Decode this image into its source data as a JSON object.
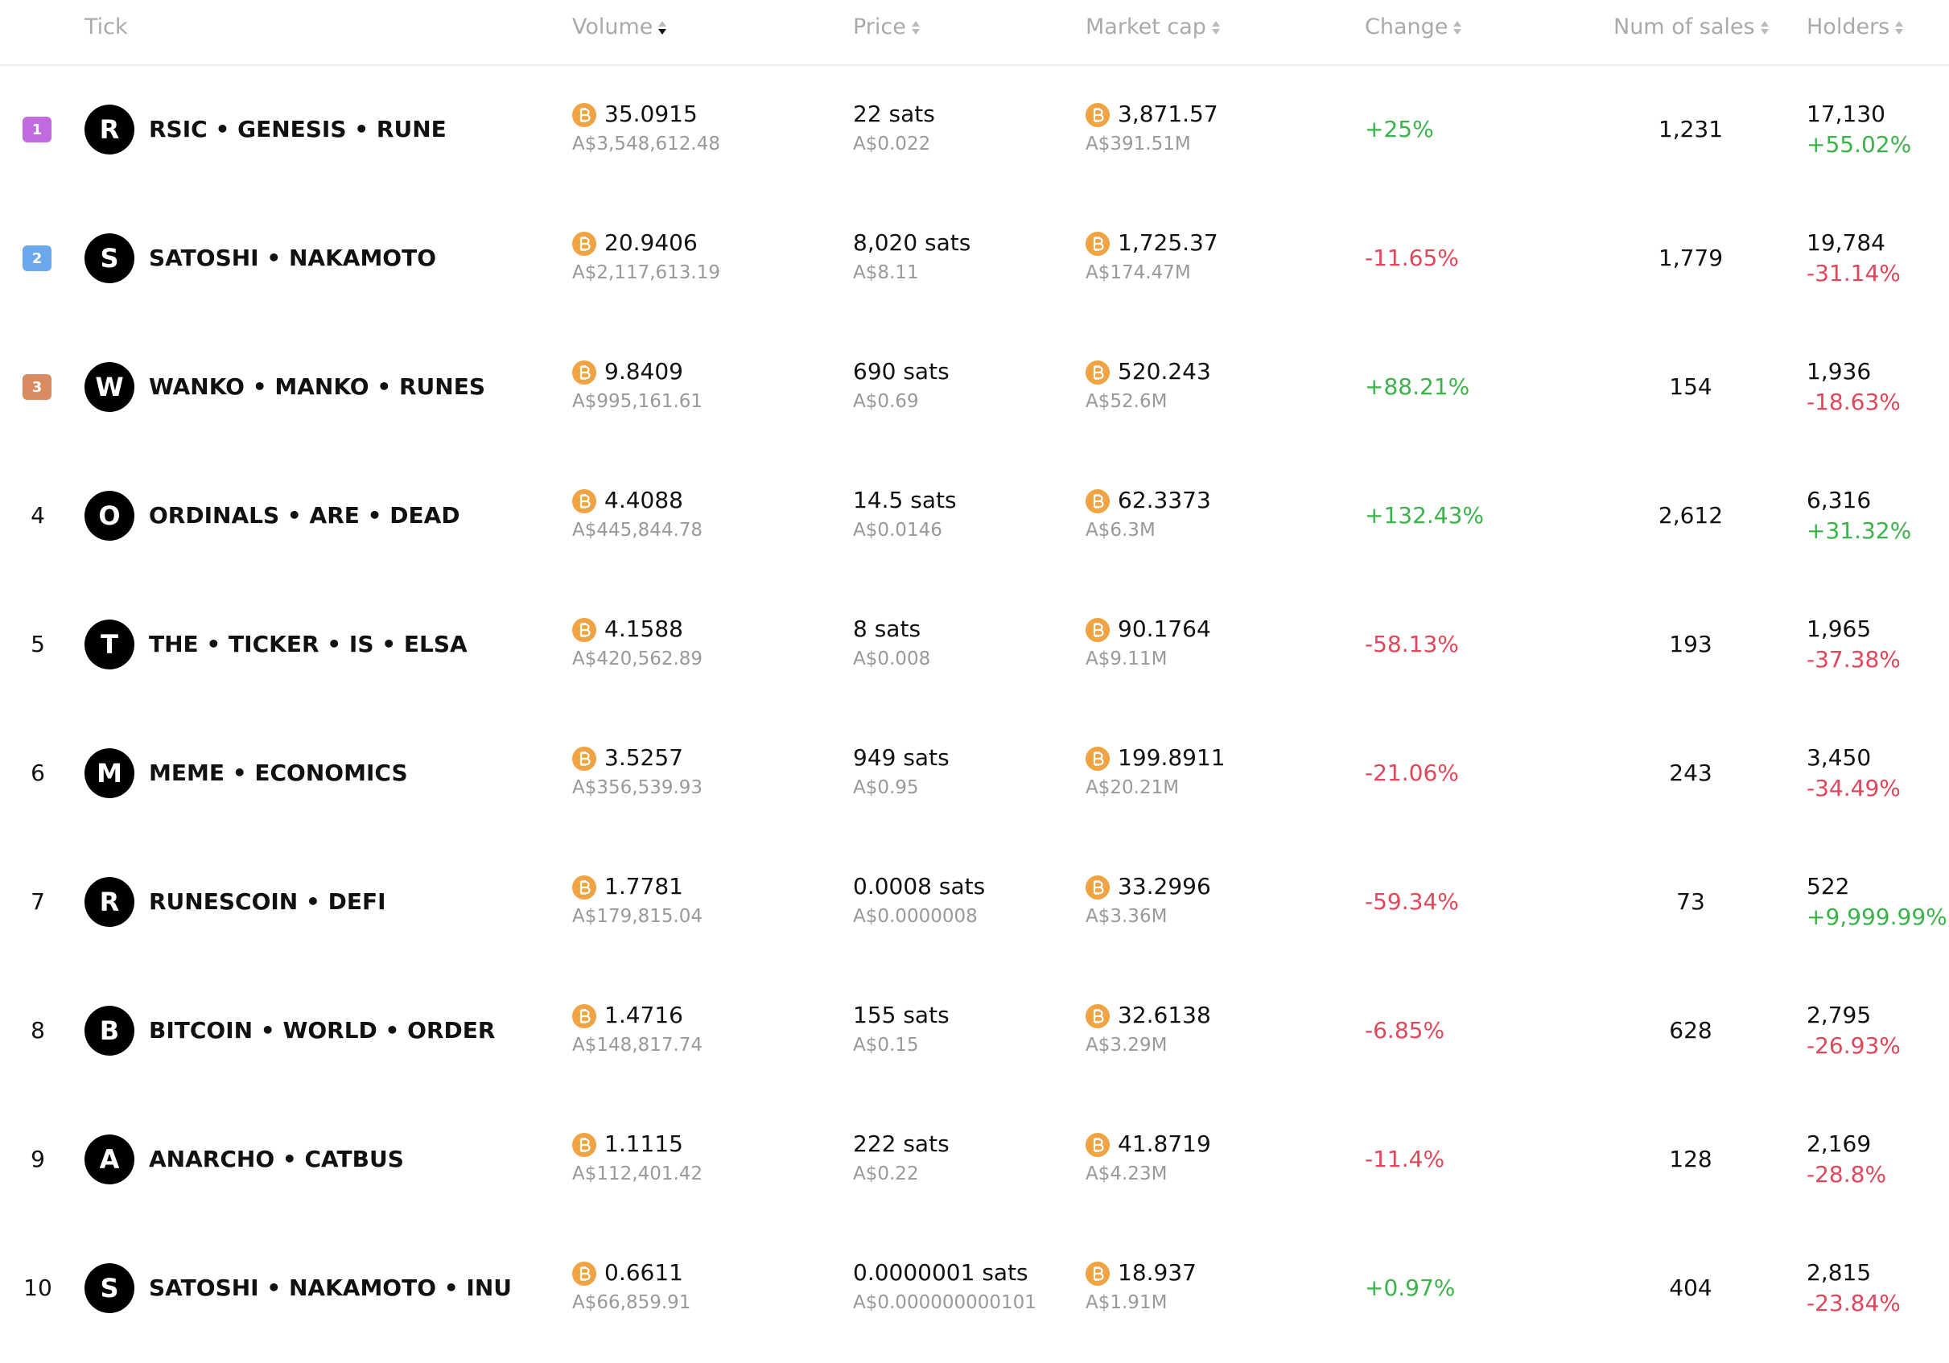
{
  "header": [
    "Tick",
    "Volume",
    "Price",
    "Market cap",
    "Change",
    "Num of sales",
    "Holders"
  ],
  "rows": [
    {
      "rank": "1",
      "letter": "R",
      "name": "RSIC • GENESIS • RUNE",
      "volume": "35.0915",
      "volume_fiat": "A$3,548,612.48",
      "price": "22 sats",
      "price_fiat": "A$0.022",
      "market_cap": "3,871.57",
      "market_cap_fiat": "A$391.51M",
      "change": "+25%",
      "sales": "1,231",
      "holders": "17,130",
      "holders_change": "+55.02%"
    },
    {
      "rank": "2",
      "letter": "S",
      "name": "SATOSHI • NAKAMOTO",
      "volume": "20.9406",
      "volume_fiat": "A$2,117,613.19",
      "price": "8,020 sats",
      "price_fiat": "A$8.11",
      "market_cap": "1,725.37",
      "market_cap_fiat": "A$174.47M",
      "change": "-11.65%",
      "sales": "1,779",
      "holders": "19,784",
      "holders_change": "-31.14%"
    },
    {
      "rank": "3",
      "letter": "W",
      "name": "WANKO • MANKO • RUNES",
      "volume": "9.8409",
      "volume_fiat": "A$995,161.61",
      "price": "690 sats",
      "price_fiat": "A$0.69",
      "market_cap": "520.243",
      "market_cap_fiat": "A$52.6M",
      "change": "+88.21%",
      "sales": "154",
      "holders": "1,936",
      "holders_change": "-18.63%"
    },
    {
      "rank": "4",
      "letter": "O",
      "name": "ORDINALS • ARE • DEAD",
      "volume": "4.4088",
      "volume_fiat": "A$445,844.78",
      "price": "14.5 sats",
      "price_fiat": "A$0.0146",
      "market_cap": "62.3373",
      "market_cap_fiat": "A$6.3M",
      "change": "+132.43%",
      "sales": "2,612",
      "holders": "6,316",
      "holders_change": "+31.32%"
    },
    {
      "rank": "5",
      "letter": "T",
      "name": "THE • TICKER • IS • ELSA",
      "volume": "4.1588",
      "volume_fiat": "A$420,562.89",
      "price": "8 sats",
      "price_fiat": "A$0.008",
      "market_cap": "90.1764",
      "market_cap_fiat": "A$9.11M",
      "change": "-58.13%",
      "sales": "193",
      "holders": "1,965",
      "holders_change": "-37.38%"
    },
    {
      "rank": "6",
      "letter": "M",
      "name": "MEME • ECONOMICS",
      "volume": "3.5257",
      "volume_fiat": "A$356,539.93",
      "price": "949 sats",
      "price_fiat": "A$0.95",
      "market_cap": "199.8911",
      "market_cap_fiat": "A$20.21M",
      "change": "-21.06%",
      "sales": "243",
      "holders": "3,450",
      "holders_change": "-34.49%"
    },
    {
      "rank": "7",
      "letter": "R",
      "name": "RUNESCOIN • DEFI",
      "volume": "1.7781",
      "volume_fiat": "A$179,815.04",
      "price": "0.0008 sats",
      "price_fiat": "A$0.0000008",
      "market_cap": "33.2996",
      "market_cap_fiat": "A$3.36M",
      "change": "-59.34%",
      "sales": "73",
      "holders": "522",
      "holders_change": "+9,999.99%"
    },
    {
      "rank": "8",
      "letter": "B",
      "name": "BITCOIN • WORLD • ORDER",
      "volume": "1.4716",
      "volume_fiat": "A$148,817.74",
      "price": "155 sats",
      "price_fiat": "A$0.15",
      "market_cap": "32.6138",
      "market_cap_fiat": "A$3.29M",
      "change": "-6.85%",
      "sales": "628",
      "holders": "2,795",
      "holders_change": "-26.93%"
    },
    {
      "rank": "9",
      "letter": "A",
      "name": "ANARCHO • CATBUS",
      "volume": "1.1115",
      "volume_fiat": "A$112,401.42",
      "price": "222 sats",
      "price_fiat": "A$0.22",
      "market_cap": "41.8719",
      "market_cap_fiat": "A$4.23M",
      "change": "-11.4%",
      "sales": "128",
      "holders": "2,169",
      "holders_change": "-28.8%"
    },
    {
      "rank": "10",
      "letter": "S",
      "name": "SATOSHI • NAKAMOTO • INU",
      "volume": "0.6611",
      "volume_fiat": "A$66,859.91",
      "price": "0.0000001 sats",
      "price_fiat": "A$0.000000000101",
      "market_cap": "18.937",
      "market_cap_fiat": "A$1.91M",
      "change": "+0.97%",
      "sales": "404",
      "holders": "2,815",
      "holders_change": "-23.84%"
    }
  ]
}
